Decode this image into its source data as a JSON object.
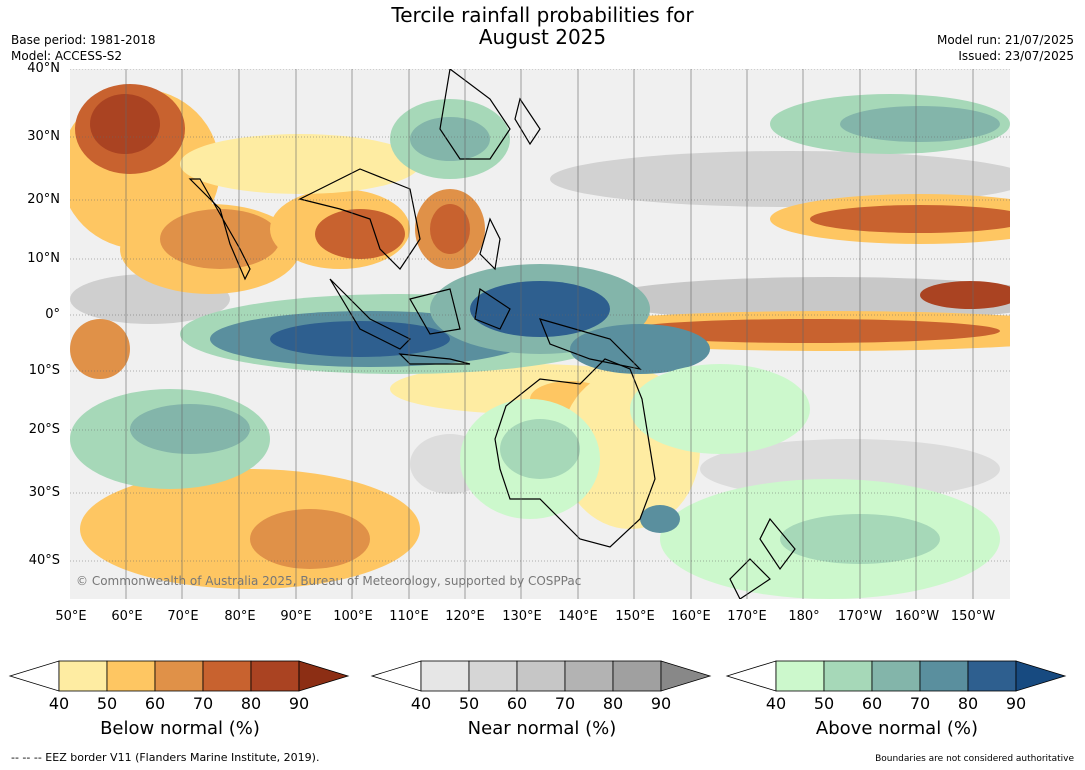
{
  "title": {
    "line1": "Tercile rainfall probabilities for",
    "line2": "August 2025"
  },
  "meta_left": {
    "base_period": "Base period: 1981-2018",
    "model": "Model: ACCESS-S2"
  },
  "meta_right": {
    "model_run": "Model run: 21/07/2025",
    "issued": "Issued: 23/07/2025"
  },
  "lat_labels": [
    "40°N",
    "30°N",
    "20°N",
    "10°N",
    "0°",
    "10°S",
    "20°S",
    "30°S",
    "40°S"
  ],
  "lon_labels": [
    "50°E",
    "60°E",
    "70°E",
    "80°E",
    "90°E",
    "100°E",
    "110°E",
    "120°E",
    "130°E",
    "140°E",
    "150°E",
    "160°E",
    "170°E",
    "180°",
    "170°W",
    "160°W",
    "150°W"
  ],
  "copyright": "© Commonwealth of Australia 2025, Bureau of Meteorology, supported by COSPPac",
  "colorbars": [
    {
      "title": "Below normal (%)",
      "ticks": [
        "40",
        "50",
        "60",
        "70",
        "80",
        "90"
      ],
      "colors": [
        "#ffffff",
        "#feeca2",
        "#fec662",
        "#e09148",
        "#c8622f",
        "#aa4322",
        "#8c2e14"
      ]
    },
    {
      "title": "Near normal (%)",
      "ticks": [
        "40",
        "50",
        "60",
        "70",
        "80",
        "90"
      ],
      "colors": [
        "#ffffff",
        "#e6e6e6",
        "#d6d6d6",
        "#c6c6c6",
        "#b3b3b3",
        "#a0a0a0",
        "#888888"
      ]
    },
    {
      "title": "Above normal (%)",
      "ticks": [
        "40",
        "50",
        "60",
        "70",
        "80",
        "90"
      ],
      "colors": [
        "#ffffff",
        "#ccf8cc",
        "#a6d8b8",
        "#83b5aa",
        "#5a8f9e",
        "#2e5f8f",
        "#174a80"
      ]
    }
  ],
  "footer_left": "--  --  -- EEZ border V11 (Flanders Marine Institute, 2019).",
  "footer_right": "Boundaries are not considered authoritative"
}
